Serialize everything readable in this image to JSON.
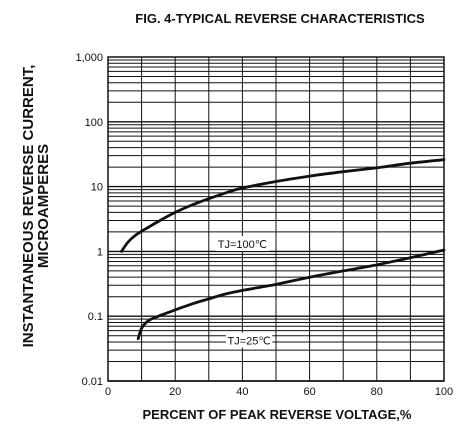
{
  "chart_data": {
    "type": "line",
    "title": "FIG. 4-TYPICAL REVERSE CHARACTERISTICS",
    "xlabel": "PERCENT OF PEAK REVERSE VOLTAGE,%",
    "ylabel_lines": [
      "INSTANTANEOUS REVERSE CURRENT,",
      "MICROAMPERES"
    ],
    "xlim": [
      0,
      100
    ],
    "ylim": [
      0.01,
      1000
    ],
    "y_scale": "log",
    "grid": true,
    "x_ticks": [
      0,
      20,
      40,
      60,
      80,
      100
    ],
    "x_tick_labels": [
      "0",
      "20",
      "40",
      "60",
      "80",
      "100"
    ],
    "y_ticks": [
      0.01,
      0.1,
      1,
      10,
      100,
      1000
    ],
    "y_tick_labels": [
      "0.01",
      "0.1",
      "1",
      "10",
      "100",
      "1,000"
    ],
    "series": [
      {
        "name": "TJ=100℃",
        "color": "#111111",
        "x": [
          4,
          6,
          8,
          10,
          12,
          15,
          20,
          25,
          30,
          35,
          40,
          50,
          60,
          70,
          80,
          90,
          100
        ],
        "y": [
          1.0,
          1.4,
          1.75,
          2.05,
          2.35,
          2.9,
          4.0,
          5.2,
          6.5,
          8.0,
          9.5,
          12.0,
          14.5,
          17.0,
          19.5,
          23.0,
          26.0
        ]
      },
      {
        "name": "TJ=25℃",
        "color": "#111111",
        "x": [
          9,
          10,
          12,
          15,
          20,
          25,
          30,
          35,
          40,
          50,
          60,
          70,
          80,
          90,
          100
        ],
        "y": [
          0.045,
          0.065,
          0.085,
          0.1,
          0.125,
          0.155,
          0.185,
          0.22,
          0.25,
          0.31,
          0.4,
          0.5,
          0.62,
          0.8,
          1.05
        ]
      }
    ],
    "annotations": [
      {
        "text": "TJ=100℃",
        "x": 40,
        "y": 1.3
      },
      {
        "text": "TJ=25℃",
        "x": 42,
        "y": 0.042
      }
    ]
  }
}
